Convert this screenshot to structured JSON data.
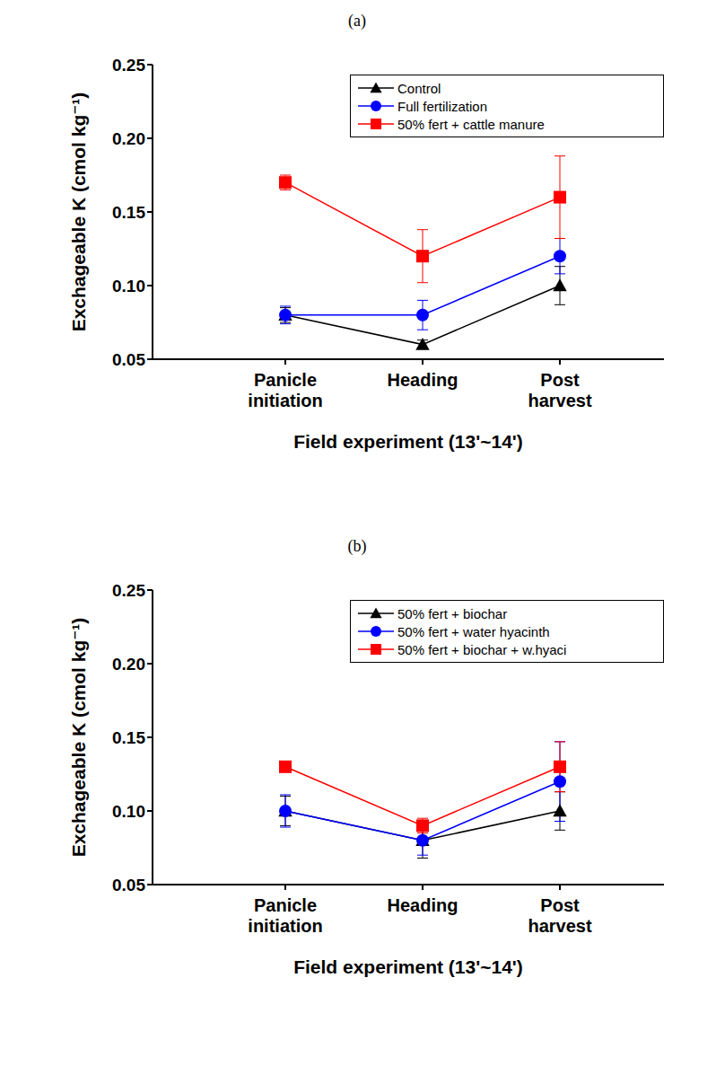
{
  "chart_data": [
    {
      "type": "line",
      "title": "(a)",
      "x_label": "Field experiment (13'~14')",
      "y_label": "Exchageable K (cmol kg⁻¹)",
      "categories": [
        "Panicle initiation",
        "Heading",
        "Post harvest"
      ],
      "ylim": [
        0.05,
        0.25
      ],
      "yticks": [
        0.05,
        {
          "value": 0.1,
          "label": "0.10"
        },
        0.15,
        {
          "value": 0.2,
          "label": "0.20"
        },
        0.25
      ],
      "grid": false,
      "legend": "upper right",
      "series": [
        {
          "name": "Control",
          "color": "#000000",
          "marker": "triangle",
          "values": [
            0.08,
            0.06,
            0.1
          ],
          "errors": [
            0.005,
            0.003,
            0.013
          ]
        },
        {
          "name": "Full fertilization",
          "color": "#0000ff",
          "marker": "circle",
          "values": [
            0.08,
            0.08,
            0.12
          ],
          "errors": [
            0.006,
            0.01,
            0.012
          ]
        },
        {
          "name": "50% fert + cattle manure",
          "color": "#ff0000",
          "marker": "square",
          "values": [
            0.17,
            0.12,
            0.16
          ],
          "errors": [
            0.005,
            0.018,
            0.028
          ]
        }
      ]
    },
    {
      "type": "line",
      "title": "(b)",
      "x_label": "Field experiment (13'~14')",
      "y_label": "Exchageable K (cmol kg⁻¹)",
      "categories": [
        "Panicle initiation",
        "Heading",
        "Post harvest"
      ],
      "ylim": [
        0.05,
        0.25
      ],
      "yticks": [
        0.05,
        {
          "value": 0.1,
          "label": "0.10"
        },
        0.15,
        {
          "value": 0.2,
          "label": "0.20"
        },
        0.25
      ],
      "grid": false,
      "legend": "upper right",
      "series": [
        {
          "name": "50% fert + biochar",
          "color": "#000000",
          "marker": "triangle",
          "values": [
            0.1,
            0.08,
            0.1
          ],
          "errors": [
            0.01,
            0.012,
            0.013
          ]
        },
        {
          "name": "50% fert + water hyacinth",
          "color": "#0000ff",
          "marker": "circle",
          "values": [
            0.1,
            0.08,
            0.12
          ],
          "errors": [
            0.011,
            0.01,
            0.027
          ]
        },
        {
          "name": "50% fert + biochar + w.hyaci",
          "color": "#ff0000",
          "marker": "square",
          "values": [
            0.13,
            0.09,
            0.13
          ],
          "errors": [
            0.002,
            0.005,
            0.017
          ]
        }
      ]
    }
  ]
}
